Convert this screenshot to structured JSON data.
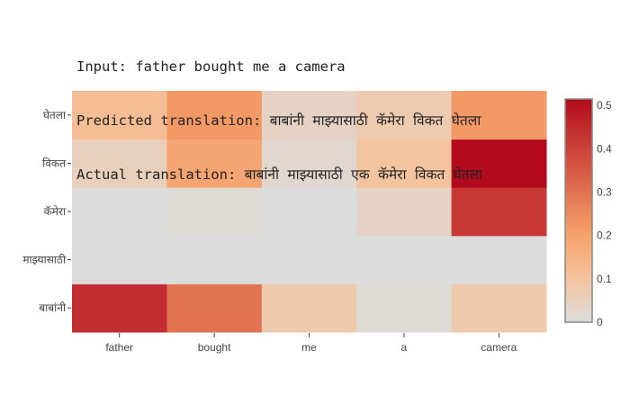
{
  "chart_data": {
    "type": "heatmap",
    "title_lines": [
      "Input: father bought me a camera",
      "Predicted translation: बाबांनी माझ्यासाठी कॅमेरा विकत घेतला",
      "Actual translation: बाबांनी माझ्यासाठी एक कॅमेरा विकत घेतला"
    ],
    "x_categories": [
      "father",
      "bought",
      "me",
      "a",
      "camera"
    ],
    "y_categories": [
      "बाबांनी",
      "माझ्यासाठी",
      "कॅमेरा",
      "विकत",
      "घेतला"
    ],
    "z": [
      [
        0.44,
        0.3,
        0.08,
        0.01,
        0.08
      ],
      [
        0.0,
        0.0,
        0.0,
        0.0,
        0.0
      ],
      [
        0.0,
        0.01,
        0.0,
        0.04,
        0.42
      ],
      [
        0.05,
        0.19,
        0.02,
        0.1,
        0.52
      ],
      [
        0.12,
        0.22,
        0.04,
        0.07,
        0.22
      ]
    ],
    "zrange": [
      0,
      0.515
    ],
    "colorscale": [
      [
        0,
        "#dcdcdc"
      ],
      [
        0.2,
        "#f5c39d"
      ],
      [
        0.4,
        "#f5a069"
      ],
      [
        1,
        "#b20a1c"
      ]
    ],
    "colorbar_ticks": [
      "0",
      "0.1",
      "0.2",
      "0.3",
      "0.4",
      "0.5"
    ],
    "colorbar_position": "right"
  }
}
